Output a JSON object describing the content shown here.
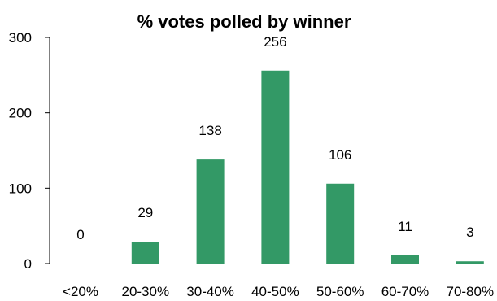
{
  "chart_data": {
    "type": "bar",
    "title": "% votes polled by winner",
    "xlabel": "",
    "ylabel": "",
    "categories": [
      "<20%",
      "20-30%",
      "30-40%",
      "40-50%",
      "50-60%",
      "60-70%",
      "70-80%"
    ],
    "values": [
      0,
      29,
      138,
      256,
      106,
      11,
      3
    ],
    "ylim": [
      0,
      300
    ],
    "yticks": [
      0,
      100,
      200,
      300
    ],
    "grid": false,
    "legend": "none",
    "bar_color": "#339966"
  }
}
